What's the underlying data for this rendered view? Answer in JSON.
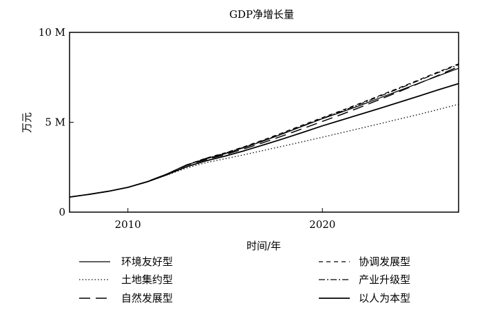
{
  "chart_data": {
    "type": "line",
    "title": "GDP净增长量",
    "xlabel": "时间/年",
    "ylabel": "万元",
    "xlim": [
      2007,
      2027
    ],
    "ylim": [
      0,
      10000000
    ],
    "x_ticks": [
      2010,
      2020
    ],
    "y_ticks": [
      {
        "value": 0,
        "label": "0"
      },
      {
        "value": 5000000,
        "label": "5 M"
      },
      {
        "value": 10000000,
        "label": "10 M"
      }
    ],
    "grid": false,
    "legend_position": "bottom",
    "x": [
      2007,
      2008,
      2009,
      2010,
      2011,
      2012,
      2013,
      2014,
      2015,
      2016,
      2017,
      2018,
      2019,
      2020,
      2021,
      2022,
      2023,
      2024,
      2025,
      2026,
      2027
    ],
    "series": [
      {
        "name": "环境友好型",
        "dash": "solid",
        "values": [
          840000,
          990000,
          1160000,
          1380000,
          1700000,
          2120000,
          2620000,
          2960000,
          3250000,
          3600000,
          3970000,
          4370000,
          4790000,
          5200000,
          5570000,
          5960000,
          6370000,
          6780000,
          7190000,
          7600000,
          8000000
        ]
      },
      {
        "name": "协调发展型",
        "dash": "dashed-short",
        "values": [
          840000,
          990000,
          1160000,
          1380000,
          1700000,
          2120000,
          2620000,
          3000000,
          3300000,
          3650000,
          4030000,
          4440000,
          4850000,
          5260000,
          5660000,
          6080000,
          6510000,
          6940000,
          7380000,
          7820000,
          8250000
        ]
      },
      {
        "name": "土地集约型",
        "dash": "dotted",
        "values": [
          840000,
          990000,
          1160000,
          1380000,
          1680000,
          2060000,
          2450000,
          2750000,
          2970000,
          3200000,
          3440000,
          3680000,
          3920000,
          4170000,
          4420000,
          4680000,
          4930000,
          5190000,
          5450000,
          5720000,
          6000000
        ]
      },
      {
        "name": "产业升级型",
        "dash": "dash-dot",
        "values": [
          840000,
          990000,
          1160000,
          1380000,
          1700000,
          2120000,
          2620000,
          2990000,
          3280000,
          3630000,
          4000000,
          4400000,
          4810000,
          5220000,
          5620000,
          6040000,
          6470000,
          6900000,
          7340000,
          7780000,
          8200000
        ]
      },
      {
        "name": "自然发展型",
        "dash": "dashed-long",
        "values": [
          840000,
          990000,
          1160000,
          1380000,
          1700000,
          2120000,
          2600000,
          2920000,
          3200000,
          3530000,
          3880000,
          4260000,
          4650000,
          5050000,
          5440000,
          5860000,
          6290000,
          6730000,
          7180000,
          7630000,
          8100000
        ]
      },
      {
        "name": "以人为本型",
        "dash": "solid-bold",
        "values": [
          840000,
          990000,
          1160000,
          1380000,
          1690000,
          2080000,
          2520000,
          2850000,
          3120000,
          3420000,
          3750000,
          4090000,
          4440000,
          4800000,
          5130000,
          5460000,
          5790000,
          6130000,
          6470000,
          6820000,
          7150000
        ]
      }
    ]
  }
}
